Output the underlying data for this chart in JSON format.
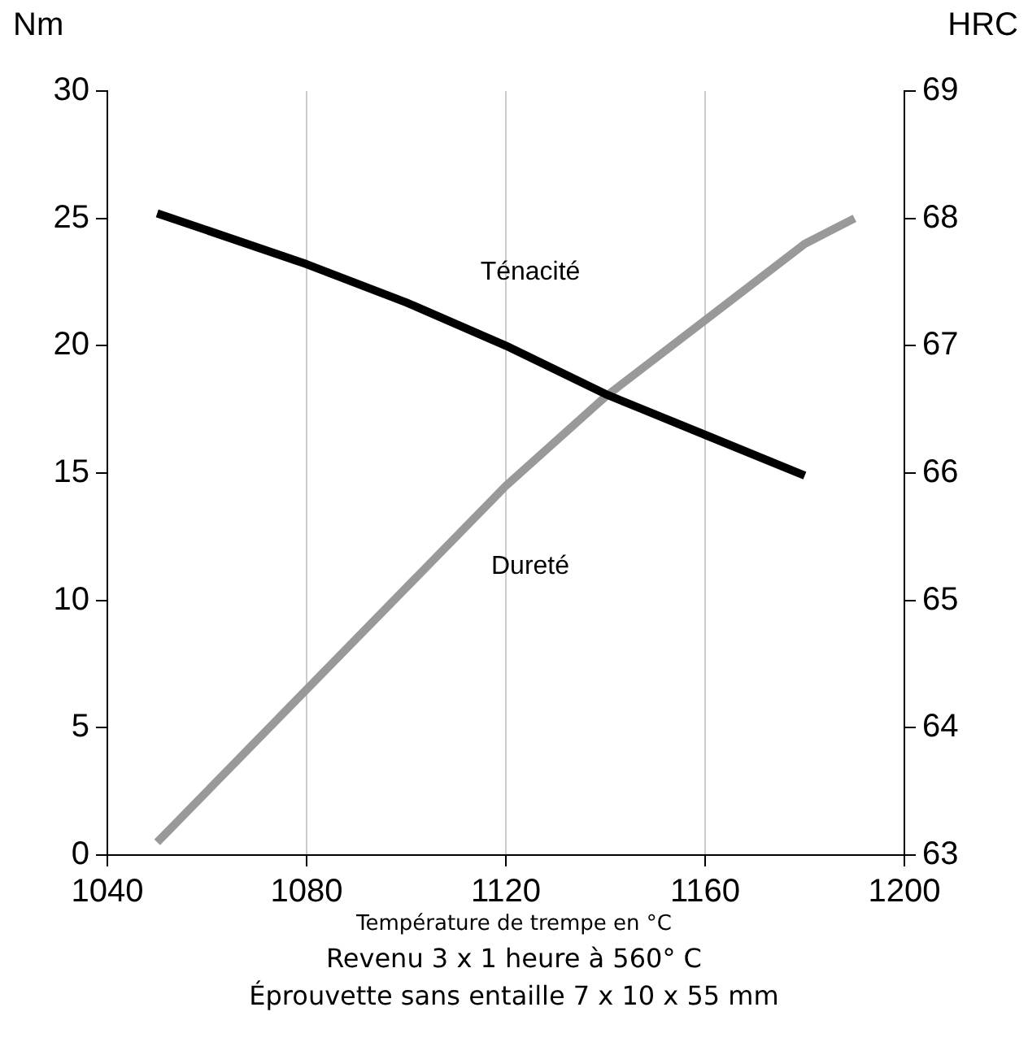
{
  "chart_data": {
    "type": "line",
    "xlabel": "Température de trempe en °C",
    "ylabel": "Nm",
    "y2label": "HRC",
    "annotations": [
      "Revenu 3 x 1 heure à 560° C",
      "Éprouvette sans entaille 7 x 10 x 55 mm"
    ],
    "xlim": [
      1040,
      1200
    ],
    "xticks": [
      1040,
      1080,
      1120,
      1160,
      1200
    ],
    "ylim": [
      0,
      30
    ],
    "yticks": [
      0,
      5,
      10,
      15,
      20,
      25,
      30
    ],
    "y2lim": [
      63,
      69
    ],
    "y2ticks": [
      63,
      64,
      65,
      66,
      67,
      68,
      69
    ],
    "grid": "x",
    "legend": false,
    "marker": "none",
    "line_style": "solid",
    "series": [
      {
        "name": "Ténacité",
        "color": "#000000",
        "x": [
          1050,
          1080,
          1100,
          1120,
          1140,
          1160,
          1180
        ],
        "values": [
          25.2,
          23.2,
          21.7,
          20.0,
          18.1,
          16.5,
          14.9
        ]
      },
      {
        "name": "Dureté",
        "color": "#999999",
        "axis": "y2",
        "x": [
          1050,
          1080,
          1100,
          1120,
          1140,
          1160,
          1180,
          1190
        ],
        "values": [
          63.1,
          64.3,
          65.1,
          65.9,
          66.6,
          67.2,
          67.8,
          68.0
        ]
      }
    ]
  }
}
